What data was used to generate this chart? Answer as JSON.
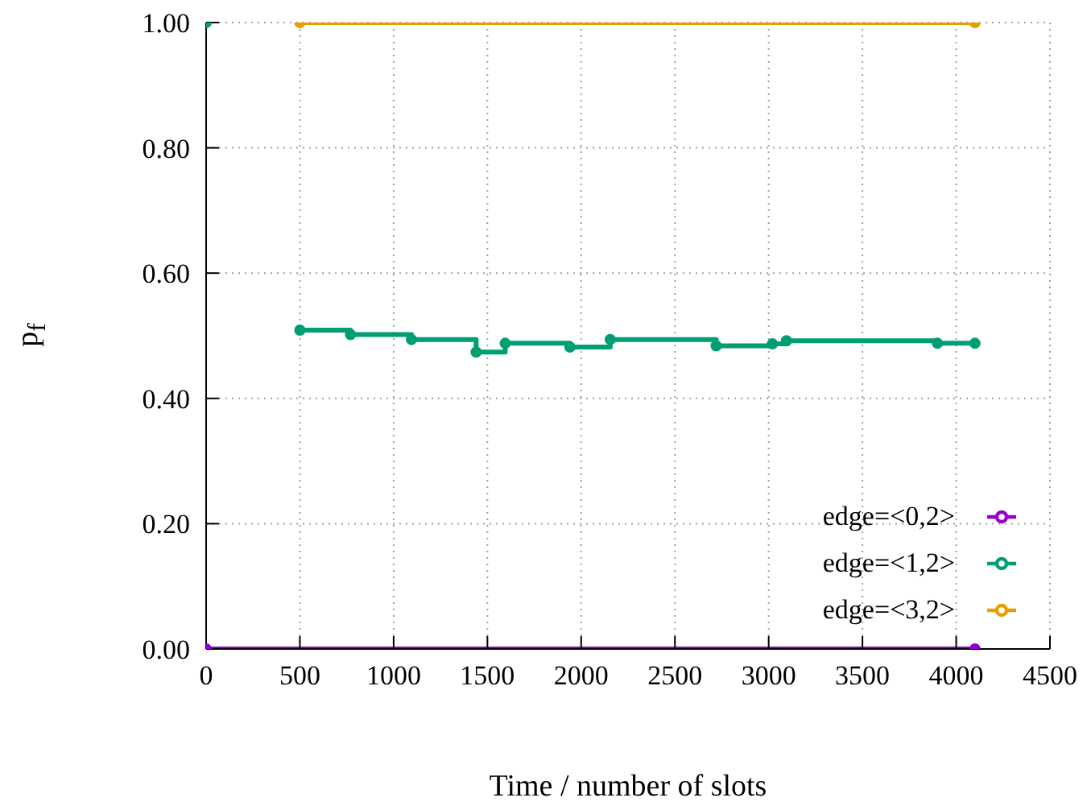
{
  "chart_data": {
    "type": "step",
    "xlabel": "Time / number of slots",
    "ylabel": "p$_{f}$",
    "xlim": [
      0,
      4500
    ],
    "xticks": [
      0,
      500,
      1000,
      1500,
      2000,
      2500,
      3000,
      3500,
      4000,
      4500
    ],
    "ylim": [
      0,
      1
    ],
    "yticks": [
      {
        "value": 0,
        "label": "0.00"
      },
      {
        "value": 0.2,
        "label": "0.20"
      },
      {
        "value": 0.4,
        "label": "0.40"
      },
      {
        "value": 0.6,
        "label": "0.60"
      },
      {
        "value": 0.8,
        "label": "0.80"
      },
      {
        "value": 1,
        "label": "1.00"
      }
    ],
    "grid": true,
    "legend": "bottom right",
    "marker": "circle",
    "line_style": "solid",
    "series": [
      {
        "name": "edge=<0,2>",
        "color": "#9400d3",
        "x": [
          0,
          4100
        ],
        "values": [
          0,
          0
        ]
      },
      {
        "name": "edge=<1,2>",
        "color": "#009e73",
        "x": [
          0,
          250,
          500,
          770,
          1095,
          1440,
          1595,
          1940,
          2155,
          2720,
          3020,
          3095,
          3900,
          4100
        ],
        "values": [
          1,
          null,
          0.509,
          0.502,
          0.494,
          0.474,
          0.488,
          0.482,
          0.494,
          0.484,
          0.487,
          0.492,
          0.488,
          0.488
        ]
      },
      {
        "name": "edge=<3,2>",
        "color": "#e69f00",
        "x": [
          500,
          4100
        ],
        "values": [
          1,
          1
        ]
      }
    ]
  }
}
